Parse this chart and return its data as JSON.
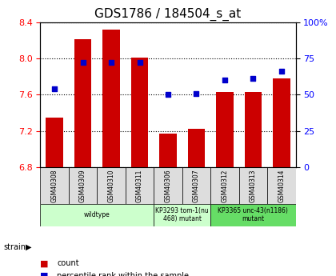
{
  "title": "GDS1786 / 184504_s_at",
  "samples": [
    "GSM40308",
    "GSM40309",
    "GSM40310",
    "GSM40311",
    "GSM40306",
    "GSM40307",
    "GSM40312",
    "GSM40313",
    "GSM40314"
  ],
  "count_values": [
    7.35,
    8.21,
    8.32,
    8.01,
    7.17,
    7.22,
    7.63,
    7.63,
    7.78
  ],
  "percentile_values": [
    54,
    72,
    72,
    72,
    50,
    51,
    60,
    61,
    66
  ],
  "ylim_left": [
    6.8,
    8.4
  ],
  "ylim_right": [
    0,
    100
  ],
  "yticks_left": [
    6.8,
    7.2,
    7.6,
    8.0,
    8.4
  ],
  "yticks_right": [
    0,
    25,
    50,
    75,
    100
  ],
  "bar_color": "#cc0000",
  "dot_color": "#0000cc",
  "groups": [
    {
      "label": "wildtype",
      "start": 0,
      "end": 4,
      "color": "#ccffcc"
    },
    {
      "label": "KP3293 tom-1(nu\n468) mutant",
      "start": 4,
      "end": 6,
      "color": "#ccffcc"
    },
    {
      "label": "KP3365 unc-43(n1186)\nmutant",
      "start": 6,
      "end": 9,
      "color": "#66dd66"
    }
  ],
  "strain_label": "strain",
  "legend_items": [
    {
      "label": "count",
      "color": "#cc0000"
    },
    {
      "label": "percentile rank within the sample",
      "color": "#0000cc"
    }
  ]
}
